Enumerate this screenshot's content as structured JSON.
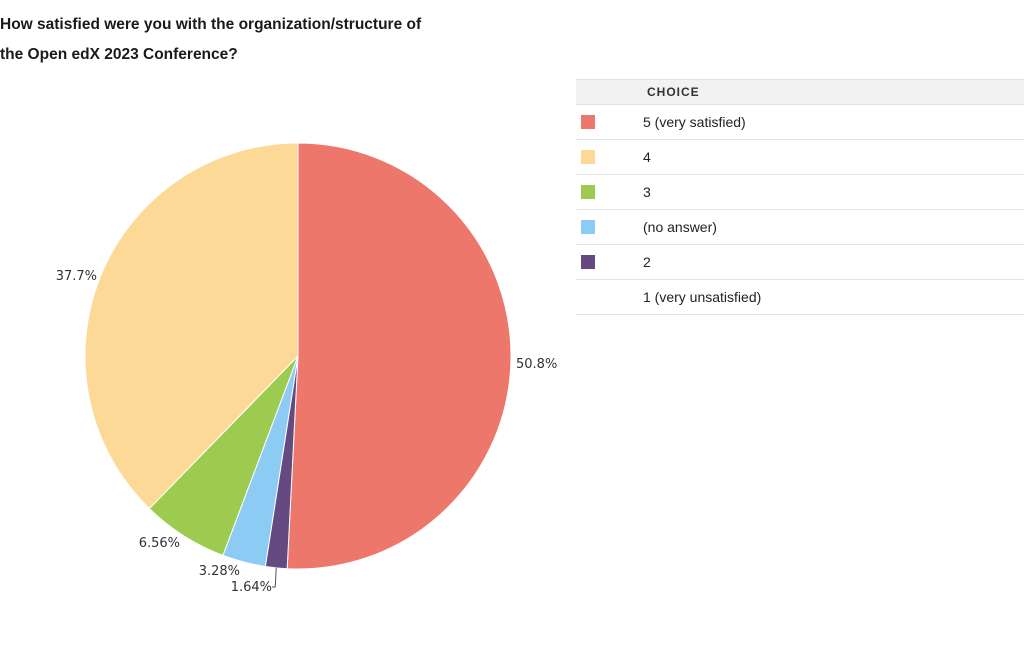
{
  "title_lines": [
    "How satisfied were you with the organization/structure of",
    "the Open edX 2023 Conference?"
  ],
  "legend": {
    "header": "CHOICE",
    "rows": [
      {
        "label": "5 (very satisfied)",
        "color": "#ec776a"
      },
      {
        "label": "4",
        "color": "#fdd997"
      },
      {
        "label": "3",
        "color": "#9ccb4f"
      },
      {
        "label": "(no answer)",
        "color": "#8ccbf3"
      },
      {
        "label": "2",
        "color": "#654a82"
      },
      {
        "label": "1 (very unsatisfied)",
        "color": ""
      }
    ]
  },
  "chart_data": {
    "type": "pie",
    "title": "How satisfied were you with the organization/structure of the Open edX 2023 Conference?",
    "slices": [
      {
        "name": "5 (very satisfied)",
        "value": 50.8,
        "label": "50.8%",
        "color": "#ec776a"
      },
      {
        "name": "2",
        "value": 1.64,
        "label": "1.64%",
        "color": "#654a82"
      },
      {
        "name": "(no answer)",
        "value": 3.28,
        "label": "3.28%",
        "color": "#8ccbf3"
      },
      {
        "name": "3",
        "value": 6.56,
        "label": "6.56%",
        "color": "#9ccb4f"
      },
      {
        "name": "4",
        "value": 37.7,
        "label": "37.7%",
        "color": "#fdd997"
      }
    ]
  }
}
